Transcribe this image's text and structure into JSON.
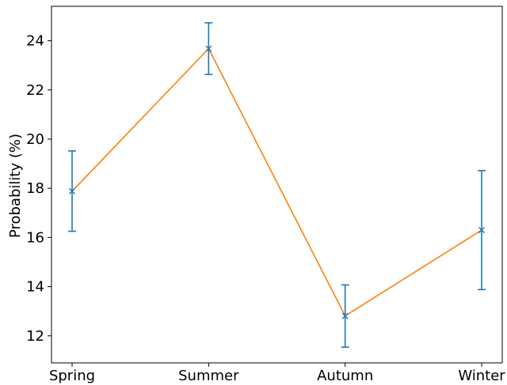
{
  "chart_data": {
    "type": "line",
    "title": "",
    "xlabel": "",
    "ylabel": "Probability (%)",
    "categories": [
      "Spring",
      "Summer",
      "Autumn",
      "Winter"
    ],
    "series": [
      {
        "values": [
          17.88,
          23.68,
          12.81,
          16.3
        ],
        "error_lower": [
          16.25,
          22.63,
          11.54,
          13.88
        ],
        "error_upper": [
          19.52,
          24.73,
          14.07,
          18.72
        ],
        "line_color": "#ff7f0e",
        "errorbar_color": "#1f77b4",
        "marker": "x"
      }
    ],
    "yticks": [
      12,
      14,
      16,
      18,
      20,
      22,
      24
    ],
    "ylim": [
      10.9,
      25.4
    ],
    "grid": false,
    "legend": "none"
  }
}
